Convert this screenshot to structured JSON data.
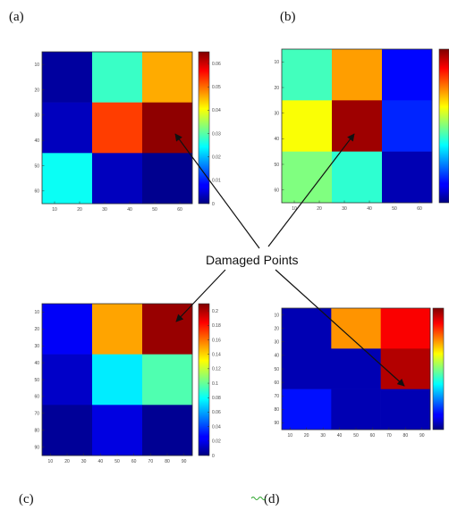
{
  "figure": {
    "annotation": "Damaged Points",
    "panels": [
      "(a)",
      "(b)",
      "(c)",
      "(d)"
    ]
  },
  "chart_data": [
    {
      "panel": "(a)",
      "type": "heatmap",
      "colormap": "jet",
      "xticks": [
        "10",
        "20",
        "30",
        "40",
        "50",
        "60"
      ],
      "yticks": [
        "10",
        "20",
        "30",
        "40",
        "50",
        "60"
      ],
      "cbar_ticks": [
        "0",
        "0.01",
        "0.02",
        "0.03",
        "0.04",
        "0.05",
        "0.06"
      ],
      "clim": [
        0,
        0.065
      ],
      "values": [
        [
          0.002,
          0.028,
          0.046
        ],
        [
          0.004,
          0.053,
          0.064
        ],
        [
          0.025,
          0.004,
          0.001
        ]
      ]
    },
    {
      "panel": "(b)",
      "type": "heatmap",
      "colormap": "jet",
      "xticks": [
        "10",
        "20",
        "30",
        "40",
        "50",
        "60"
      ],
      "yticks": [
        "10",
        "20",
        "30",
        "40",
        "50",
        "60"
      ],
      "cbar_ticks": [],
      "clim": [
        0,
        1
      ],
      "values": [
        [
          0.44,
          0.72,
          0.13
        ],
        [
          0.62,
          0.97,
          0.16
        ],
        [
          0.5,
          0.42,
          0.05
        ]
      ]
    },
    {
      "panel": "(c)",
      "type": "heatmap",
      "colormap": "jet",
      "xticks": [
        "10",
        "20",
        "30",
        "40",
        "50",
        "60",
        "70",
        "80",
        "90"
      ],
      "yticks": [
        "10",
        "20",
        "30",
        "40",
        "50",
        "60",
        "70",
        "80",
        "90"
      ],
      "cbar_ticks": [
        "0",
        "0.02",
        "0.04",
        "0.06",
        "0.08",
        "0.1",
        "0.12",
        "0.14",
        "0.16",
        "0.18",
        "0.2"
      ],
      "clim": [
        0,
        0.21
      ],
      "values": [
        [
          0.025,
          0.15,
          0.205
        ],
        [
          0.015,
          0.075,
          0.095
        ],
        [
          0.005,
          0.02,
          0.004
        ]
      ]
    },
    {
      "panel": "(d)",
      "type": "heatmap",
      "colormap": "jet",
      "xticks": [
        "10",
        "20",
        "30",
        "40",
        "50",
        "60",
        "70",
        "80",
        "90"
      ],
      "yticks": [
        "10",
        "20",
        "30",
        "40",
        "50",
        "60",
        "70",
        "80",
        "90"
      ],
      "cbar_ticks": [],
      "clim": [
        0,
        1
      ],
      "values": [
        [
          0.05,
          0.73,
          0.88
        ],
        [
          0.05,
          0.05,
          0.95
        ],
        [
          0.14,
          0.05,
          0.05
        ]
      ]
    }
  ]
}
